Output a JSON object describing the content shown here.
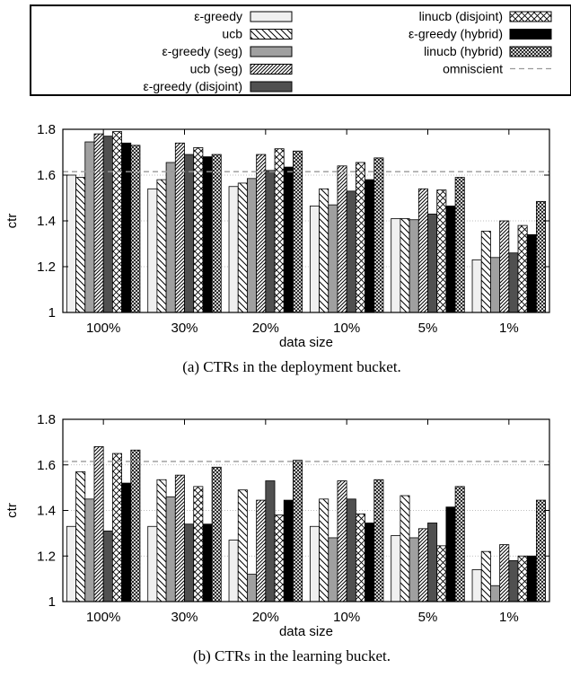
{
  "series_styles": [
    {
      "pattern": "solid-light",
      "color": "#f0f0f0"
    },
    {
      "pattern": "diag-back",
      "color": "#ffffff"
    },
    {
      "pattern": "solid-mid",
      "color": "#a0a0a0"
    },
    {
      "pattern": "diag-forward-dense",
      "color": "#ffffff"
    },
    {
      "pattern": "solid-dark",
      "color": "#505050"
    },
    {
      "pattern": "crosshatch",
      "color": "#ffffff"
    },
    {
      "pattern": "solid-black",
      "color": "#000000"
    },
    {
      "pattern": "crosshatch-dense",
      "color": "#ffffff"
    }
  ],
  "legend": {
    "entries": [
      {
        "name": "ε-greedy",
        "style": 0
      },
      {
        "name": "ucb",
        "style": 1
      },
      {
        "name": "ε-greedy (seg)",
        "style": 2
      },
      {
        "name": "ucb (seg)",
        "style": 3
      },
      {
        "name": "ε-greedy (disjoint)",
        "style": 4
      },
      {
        "name": "linucb (disjoint)",
        "style": 5
      },
      {
        "name": "ε-greedy (hybrid)",
        "style": 6
      },
      {
        "name": "linucb (hybrid)",
        "style": 7
      },
      {
        "name": "omniscient",
        "style": -1
      }
    ]
  },
  "chart_data": [
    {
      "type": "bar",
      "caption": "(a) CTRs in the deployment bucket.",
      "xlabel": "data size",
      "ylabel": "ctr",
      "ylim": [
        1,
        1.8
      ],
      "yticks": [
        "1",
        "1.2",
        "1.4",
        "1.6",
        "1.8"
      ],
      "categories": [
        "100%",
        "30%",
        "20%",
        "10%",
        "5%",
        "1%"
      ],
      "reference_line": {
        "name": "omniscient",
        "value": 1.615
      },
      "grid": true,
      "series": [
        {
          "name": "ε-greedy",
          "values": [
            1.6,
            1.54,
            1.55,
            1.465,
            1.41,
            1.23
          ]
        },
        {
          "name": "ucb",
          "values": [
            1.59,
            1.58,
            1.565,
            1.54,
            1.41,
            1.355
          ]
        },
        {
          "name": "ε-greedy (seg)",
          "values": [
            1.745,
            1.655,
            1.585,
            1.47,
            1.405,
            1.24
          ]
        },
        {
          "name": "ucb (seg)",
          "values": [
            1.78,
            1.74,
            1.69,
            1.64,
            1.54,
            1.4
          ]
        },
        {
          "name": "ε-greedy (disjoint)",
          "values": [
            1.77,
            1.69,
            1.62,
            1.53,
            1.43,
            1.26
          ]
        },
        {
          "name": "linucb (disjoint)",
          "values": [
            1.79,
            1.72,
            1.715,
            1.655,
            1.535,
            1.38
          ]
        },
        {
          "name": "ε-greedy (hybrid)",
          "values": [
            1.74,
            1.68,
            1.635,
            1.58,
            1.465,
            1.34
          ]
        },
        {
          "name": "linucb (hybrid)",
          "values": [
            1.73,
            1.69,
            1.705,
            1.675,
            1.59,
            1.485
          ]
        }
      ]
    },
    {
      "type": "bar",
      "caption": "(b) CTRs in the learning bucket.",
      "xlabel": "data size",
      "ylabel": "ctr",
      "ylim": [
        1,
        1.8
      ],
      "yticks": [
        "1",
        "1.2",
        "1.4",
        "1.6",
        "1.8"
      ],
      "categories": [
        "100%",
        "30%",
        "20%",
        "10%",
        "5%",
        "1%"
      ],
      "reference_line": {
        "name": "omniscient",
        "value": 1.615
      },
      "grid": true,
      "series": [
        {
          "name": "ε-greedy",
          "values": [
            1.33,
            1.33,
            1.27,
            1.33,
            1.29,
            1.14
          ]
        },
        {
          "name": "ucb",
          "values": [
            1.57,
            1.535,
            1.49,
            1.45,
            1.465,
            1.22
          ]
        },
        {
          "name": "ε-greedy (seg)",
          "values": [
            1.45,
            1.46,
            1.12,
            1.28,
            1.28,
            1.07
          ]
        },
        {
          "name": "ucb (seg)",
          "values": [
            1.68,
            1.555,
            1.445,
            1.53,
            1.32,
            1.25
          ]
        },
        {
          "name": "ε-greedy (disjoint)",
          "values": [
            1.31,
            1.34,
            1.53,
            1.45,
            1.345,
            1.18
          ]
        },
        {
          "name": "linucb (disjoint)",
          "values": [
            1.65,
            1.505,
            1.38,
            1.385,
            1.245,
            1.2
          ]
        },
        {
          "name": "ε-greedy (hybrid)",
          "values": [
            1.52,
            1.34,
            1.445,
            1.345,
            1.415,
            1.2
          ]
        },
        {
          "name": "linucb (hybrid)",
          "values": [
            1.665,
            1.59,
            1.62,
            1.535,
            1.505,
            1.445
          ]
        }
      ]
    }
  ]
}
